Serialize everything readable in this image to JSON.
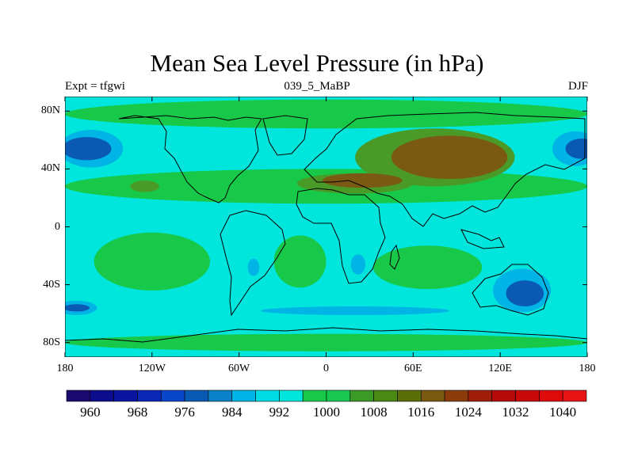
{
  "figure": {
    "title": "Mean Sea Level Pressure (in hPa)",
    "left_string": "Expt = tfgwi",
    "center_string": "039_5_MaBP",
    "right_string": "DJF"
  },
  "map": {
    "projection": "cylindrical equidistant",
    "lon_range": [
      -180,
      180
    ],
    "lat_range": [
      -90,
      90
    ],
    "lat_ticks": [
      {
        "value": 80,
        "label": "80N"
      },
      {
        "value": 40,
        "label": "40N"
      },
      {
        "value": 0,
        "label": "0"
      },
      {
        "value": -40,
        "label": "40S"
      },
      {
        "value": -80,
        "label": "80S"
      }
    ],
    "lon_ticks": [
      {
        "value": -180,
        "label": "180"
      },
      {
        "value": -120,
        "label": "120W"
      },
      {
        "value": -60,
        "label": "60W"
      },
      {
        "value": 0,
        "label": "0"
      },
      {
        "value": 60,
        "label": "60E"
      },
      {
        "value": 120,
        "label": "120E"
      },
      {
        "value": 180,
        "label": "180"
      }
    ],
    "background_color": "#00e6dc",
    "regions": [
      {
        "name": "southern-ocean-band",
        "level": 1008,
        "color": "#18c848",
        "lat": -80,
        "lon": 0,
        "w": 360,
        "h": 12
      },
      {
        "name": "northern-mid-lat-band",
        "level": 1008,
        "color": "#18c848",
        "lat": 28,
        "lon": 0,
        "w": 360,
        "h": 24
      },
      {
        "name": "arctic-band",
        "level": 1008,
        "color": "#18c848",
        "lat": 78,
        "lon": 0,
        "w": 360,
        "h": 20
      },
      {
        "name": "north-pacific-low",
        "level": 992,
        "color": "#00b4e6",
        "lat": 54,
        "lon": -162,
        "w": 44,
        "h": 26
      },
      {
        "name": "north-pacific-low-core",
        "level": 984,
        "color": "#0a5ab4",
        "lat": 54,
        "lon": -165,
        "w": 34,
        "h": 16
      },
      {
        "name": "north-pacific-low-east",
        "level": 992,
        "color": "#00b4e6",
        "lat": 54,
        "lon": 172,
        "w": 32,
        "h": 24
      },
      {
        "name": "north-pacific-low-east-core",
        "level": 984,
        "color": "#0a5ab4",
        "lat": 54,
        "lon": 176,
        "w": 22,
        "h": 14
      },
      {
        "name": "north-atlantic-low",
        "level": 1000,
        "color": "#00e6dc",
        "lat": 56,
        "lon": -40,
        "w": 90,
        "h": 24
      },
      {
        "name": "asian-high",
        "level": 1016,
        "color": "#4a9a28",
        "lat": 48,
        "lon": 75,
        "w": 110,
        "h": 40
      },
      {
        "name": "asian-high-core",
        "level": 1024,
        "color": "#7a5a12",
        "lat": 48,
        "lon": 85,
        "w": 80,
        "h": 30
      },
      {
        "name": "mediterranean-high",
        "level": 1016,
        "color": "#4a9a28",
        "lat": 30,
        "lon": 20,
        "w": 80,
        "h": 14
      },
      {
        "name": "mediterranean-high-core",
        "level": 1024,
        "color": "#7a5a12",
        "lat": 32,
        "lon": 25,
        "w": 55,
        "h": 10
      },
      {
        "name": "north-pacific-high-blob",
        "level": 1016,
        "color": "#4a9a28",
        "lat": 28,
        "lon": -125,
        "w": 20,
        "h": 8
      },
      {
        "name": "south-pacific-high",
        "level": 1008,
        "color": "#18c848",
        "lat": -24,
        "lon": -120,
        "w": 80,
        "h": 40
      },
      {
        "name": "south-atlantic-high",
        "level": 1008,
        "color": "#18c848",
        "lat": -24,
        "lon": -18,
        "w": 36,
        "h": 36
      },
      {
        "name": "south-indian-high",
        "level": 1008,
        "color": "#18c848",
        "lat": -28,
        "lon": 70,
        "w": 75,
        "h": 30
      },
      {
        "name": "australia-low",
        "level": 992,
        "color": "#00b4e6",
        "lat": -44,
        "lon": 135,
        "w": 40,
        "h": 30
      },
      {
        "name": "australia-low-core",
        "level": 984,
        "color": "#0a5ab4",
        "lat": -46,
        "lon": 137,
        "w": 26,
        "h": 18
      },
      {
        "name": "south-america-low",
        "level": 992,
        "color": "#00b4e6",
        "lat": -28,
        "lon": -50,
        "w": 8,
        "h": 12
      },
      {
        "name": "south-africa-low",
        "level": 992,
        "color": "#00b4e6",
        "lat": -26,
        "lon": 22,
        "w": 10,
        "h": 14
      },
      {
        "name": "southern-ocean-low-west",
        "level": 992,
        "color": "#00b4e6",
        "lat": -56,
        "lon": -172,
        "w": 28,
        "h": 10
      },
      {
        "name": "southern-ocean-low-west-core",
        "level": 984,
        "color": "#0a5ab4",
        "lat": -56,
        "lon": -172,
        "w": 18,
        "h": 5
      },
      {
        "name": "southern-ocean-low-band",
        "level": 992,
        "color": "#00b4e6",
        "lat": -58,
        "lon": 20,
        "w": 130,
        "h": 6
      }
    ],
    "coastlines_color": "#000000"
  },
  "colorbar": {
    "colors": [
      "#1a0a6e",
      "#0d0d8c",
      "#0a14a0",
      "#0a28b4",
      "#0a46c8",
      "#0a5ab4",
      "#0a82c8",
      "#00b4e6",
      "#00dce6",
      "#00e6dc",
      "#18c848",
      "#18c850",
      "#3c9a28",
      "#4a8a14",
      "#5a6e0a",
      "#7a5a12",
      "#8c3c0a",
      "#a01e0a",
      "#b40a0a",
      "#c80a0a",
      "#dc0a0a",
      "#e61414"
    ],
    "labels": [
      {
        "index": 1,
        "text": "960"
      },
      {
        "index": 3,
        "text": "968"
      },
      {
        "index": 5,
        "text": "976"
      },
      {
        "index": 7,
        "text": "984"
      },
      {
        "index": 9,
        "text": "992"
      },
      {
        "index": 11,
        "text": "1000"
      },
      {
        "index": 13,
        "text": "1008"
      },
      {
        "index": 15,
        "text": "1016"
      },
      {
        "index": 17,
        "text": "1024"
      },
      {
        "index": 19,
        "text": "1032"
      },
      {
        "index": 21,
        "text": "1040"
      }
    ]
  }
}
